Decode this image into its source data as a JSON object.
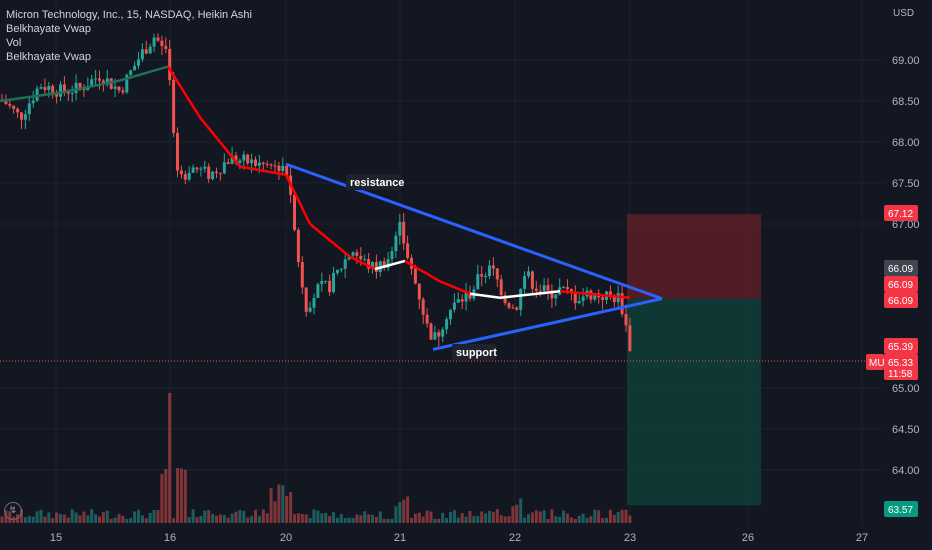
{
  "header": {
    "symbol_line": "Micron Technology, Inc., 15, NASDAQ, Heikin Ashi",
    "indicators": [
      "Belkhayate Vwap",
      "Vol",
      "Belkhayate Vwap"
    ]
  },
  "currency": "USD",
  "colors": {
    "background": "#131722",
    "up": "#26a69a",
    "down": "#ef5350",
    "trendline": "#2962ff",
    "vwap_red": "#ff0000",
    "vwap_white": "#ffffff",
    "vwap_green": "#1f6f5a",
    "stop_zone": "#5c1f27",
    "target_zone": "#0f3b36"
  },
  "chart_data": {
    "type": "candlestick",
    "y_axis": {
      "ticks": [
        "69.00",
        "68.50",
        "68.00",
        "67.50",
        "67.00",
        "65.00",
        "64.50",
        "64.00"
      ],
      "ylim": [
        63.5,
        69.6
      ]
    },
    "x_axis": {
      "ticks": [
        "15",
        "16",
        "20",
        "21",
        "22",
        "23",
        "26",
        "27"
      ]
    },
    "price_labels": [
      {
        "value": "67.12",
        "kind": "stop"
      },
      {
        "value": "66.09",
        "kind": "neutral"
      },
      {
        "value": "66.09",
        "kind": "red"
      },
      {
        "value": "66.09",
        "kind": "red"
      },
      {
        "value": "65.39",
        "kind": "red"
      },
      {
        "value": "65.33",
        "kind": "red",
        "countdown": "11:58"
      },
      {
        "value": "63.57",
        "kind": "target"
      }
    ],
    "last_price_tag": "MU",
    "annotations": [
      {
        "text": "resistance"
      },
      {
        "text": "support"
      }
    ],
    "trendlines": {
      "resistance": {
        "from": [
          "20",
          67.73
        ],
        "to": [
          "23",
          66.1
        ]
      },
      "support": {
        "from": [
          "21",
          65.47
        ],
        "to": [
          "23",
          66.02
        ]
      }
    },
    "position": {
      "entry": 66.09,
      "stop": 67.12,
      "target": 63.57
    }
  }
}
